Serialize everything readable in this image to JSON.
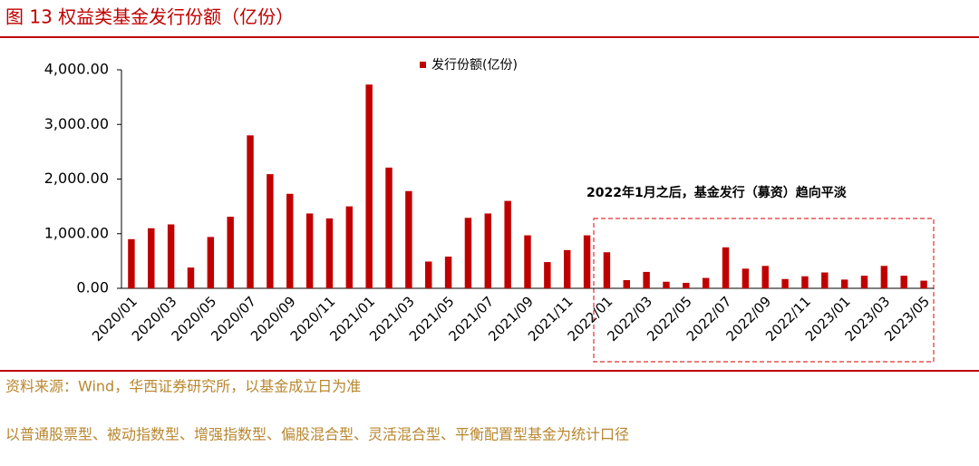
{
  "chart_data": {
    "type": "bar",
    "title": "图 13 权益类基金发行份额（亿份）",
    "categories": [
      "2020/01",
      null,
      "2020/03",
      null,
      "2020/05",
      null,
      "2020/07",
      null,
      "2020/09",
      null,
      "2020/11",
      null,
      "2021/01",
      null,
      "2021/03",
      null,
      "2021/05",
      null,
      "2021/07",
      null,
      "2021/09",
      null,
      "2021/11",
      null,
      "2022/01",
      null,
      "2022/03",
      null,
      "2022/05",
      null,
      "2022/07",
      null,
      "2022/09",
      null,
      "2022/11",
      null,
      "2023/01",
      null,
      "2023/03",
      null,
      "2023/05"
    ],
    "series": [
      {
        "name": "发行份额(亿份)",
        "color": "#c00000",
        "values": [
          900,
          1100,
          1170,
          380,
          940,
          1310,
          2800,
          2090,
          1730,
          1370,
          1280,
          1500,
          3730,
          2210,
          1780,
          490,
          580,
          1290,
          1370,
          1600,
          970,
          480,
          700,
          970,
          660,
          150,
          300,
          120,
          100,
          190,
          750,
          360,
          410,
          170,
          220,
          290,
          160,
          230,
          410,
          230,
          140
        ]
      }
    ],
    "ylim": [
      0,
      4000
    ],
    "yticks": [
      {
        "value": 0,
        "label": "0.00"
      },
      {
        "value": 1000,
        "label": "1,000.00"
      },
      {
        "value": 2000,
        "label": "2,000.00"
      },
      {
        "value": 3000,
        "label": "3,000.00"
      },
      {
        "value": 4000,
        "label": "4,000.00"
      }
    ],
    "legend": "top",
    "annotation": "2022年1月之后，基金发行（募资）趋向平淡",
    "source": "资料来源：Wind，华西证券研究所，以基金成立日为准",
    "note": "以普通股票型、被动指数型、增强指数型、偏股混合型、灵活混合型、平衡配置型基金为统计口径"
  }
}
